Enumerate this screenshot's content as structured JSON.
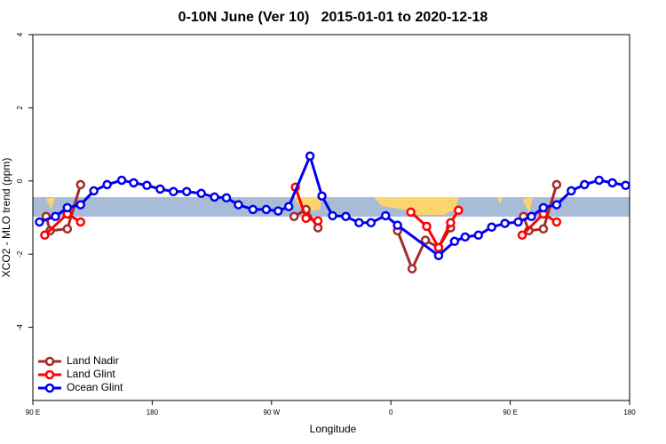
{
  "chart_data": {
    "type": "line",
    "title": "0-10N June (Ver 10)   2015-01-01 to 2020-12-18",
    "x_label": "Longitude",
    "y_label": "XCO2 - MLO trend (ppm)",
    "xlim": [
      90,
      540
    ],
    "xticks": [
      {
        "value": 90,
        "label": "90 E"
      },
      180,
      {
        "value": 270,
        "label": "90 W"
      },
      {
        "value": 360,
        "label": "0"
      },
      {
        "value": 450,
        "label": "90 E"
      },
      {
        "value": 540,
        "label": "180"
      }
    ],
    "ylim": [
      -6,
      4
    ],
    "yticks": [
      -4,
      -2,
      0,
      2,
      4
    ],
    "legend": "bottom-left",
    "series": [
      {
        "name": "Land Nadir",
        "color": "#a52a2a",
        "x": [
          100,
          103,
          116,
          126,
          null,
          287,
          296,
          305,
          null,
          365,
          376,
          386,
          396,
          405,
          null,
          460,
          464,
          475,
          485
        ],
        "values": [
          -0.97,
          -1.36,
          -1.31,
          -0.1,
          null,
          -0.97,
          -0.78,
          -1.28,
          null,
          -1.36,
          -2.4,
          -1.62,
          -1.82,
          -1.28,
          null,
          -0.97,
          -1.36,
          -1.31,
          -0.1
        ]
      },
      {
        "name": "Land Glint",
        "color": "#ff0000",
        "x": [
          99,
          116,
          126,
          null,
          288,
          296,
          305,
          null,
          375,
          387,
          396,
          405,
          411,
          null,
          459,
          475,
          485
        ],
        "values": [
          -1.48,
          -0.9,
          -1.12,
          null,
          -0.17,
          -1.02,
          -1.09,
          null,
          -0.85,
          -1.24,
          -1.82,
          -1.14,
          -0.8,
          null,
          -1.48,
          -0.9,
          -1.12
        ]
      },
      {
        "name": "Ocean Glint",
        "color": "#0000ee",
        "x": [
          95,
          107,
          116,
          126,
          136,
          146,
          157,
          166,
          176,
          186,
          196,
          206,
          217,
          227,
          236,
          245,
          256,
          266,
          275,
          283,
          299,
          308,
          316,
          326,
          336,
          345,
          356,
          365,
          396,
          408,
          416,
          426,
          436,
          446,
          456,
          466,
          475,
          485,
          496,
          506,
          517,
          527,
          537
        ],
        "values": [
          -1.12,
          -0.97,
          -0.73,
          -0.65,
          -0.27,
          -0.1,
          0.02,
          -0.05,
          -0.12,
          -0.22,
          -0.29,
          -0.29,
          -0.34,
          -0.44,
          -0.46,
          -0.65,
          -0.78,
          -0.78,
          -0.82,
          -0.7,
          0.68,
          -0.41,
          -0.95,
          -0.97,
          -1.14,
          -1.14,
          -0.95,
          -1.21,
          -2.04,
          -1.65,
          -1.53,
          -1.48,
          -1.26,
          -1.16,
          -1.12,
          -0.97,
          -0.73,
          -0.65,
          -0.27,
          -0.1,
          0.02,
          -0.05,
          -0.12
        ]
      }
    ]
  }
}
